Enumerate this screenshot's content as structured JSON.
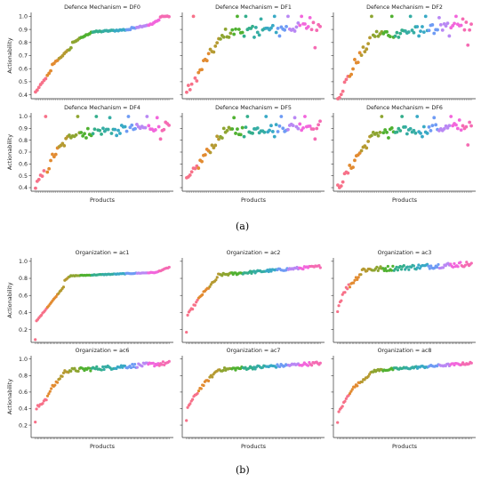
{
  "figure": {
    "label_a": "(a)",
    "label_b": "(b)"
  },
  "chart_data": [
    {
      "type": "scatter",
      "title": "Defence Mechanism = DF0",
      "xlabel": "",
      "ylabel": "Actionability",
      "ylim": [
        0.37,
        1.03
      ],
      "yticks": [
        0.4,
        0.5,
        0.6,
        0.7,
        0.8,
        0.9,
        1.0
      ],
      "ytick_labels": [
        "0.4",
        "0.5",
        "0.6",
        "0.7",
        "0.8",
        "0.9",
        "1.0"
      ],
      "n": 80,
      "ranges": [
        [
          0,
          10,
          0.42,
          0.58
        ],
        [
          10,
          22,
          0.63,
          0.76
        ],
        [
          22,
          33,
          0.8,
          0.87
        ],
        [
          33,
          57,
          0.88,
          0.9
        ],
        [
          57,
          70,
          0.91,
          0.94
        ],
        [
          70,
          74,
          0.95,
          0.97
        ],
        [
          74,
          80,
          1.0,
          1.0
        ]
      ],
      "jitter": 0.005
    },
    {
      "type": "scatter",
      "title": "Defence Mechanism = DF1",
      "xlabel": "",
      "ylabel": "",
      "ylim": [
        0.37,
        1.03
      ],
      "yticks": [
        0.4,
        0.5,
        0.6,
        0.7,
        0.8,
        0.9,
        1.0
      ],
      "ytick_labels": [],
      "n": 80,
      "ranges": [
        [
          0,
          10,
          0.42,
          0.6
        ],
        [
          10,
          22,
          0.64,
          0.84
        ],
        [
          22,
          80,
          0.87,
          0.93
        ]
      ],
      "jitter": 0.035,
      "outliers": [
        [
          4,
          1.0
        ],
        [
          30,
          1.0
        ],
        [
          35,
          1.0
        ],
        [
          44,
          0.98
        ],
        [
          52,
          1.0
        ],
        [
          60,
          1.0
        ],
        [
          68,
          1.0
        ],
        [
          73,
          0.99
        ],
        [
          25,
          0.84
        ],
        [
          40,
          0.84
        ],
        [
          55,
          0.85
        ],
        [
          76,
          0.76
        ]
      ]
    },
    {
      "type": "scatter",
      "title": "Defence Mechanism = DF2",
      "xlabel": "",
      "ylabel": "",
      "ylim": [
        0.37,
        1.03
      ],
      "yticks": [
        0.4,
        0.5,
        0.6,
        0.7,
        0.8,
        0.9,
        1.0
      ],
      "ytick_labels": [],
      "n": 80,
      "ranges": [
        [
          0,
          10,
          0.38,
          0.6
        ],
        [
          10,
          22,
          0.64,
          0.84
        ],
        [
          22,
          80,
          0.86,
          0.93
        ]
      ],
      "jitter": 0.035,
      "outliers": [
        [
          20,
          1.0
        ],
        [
          32,
          1.0
        ],
        [
          43,
          1.0
        ],
        [
          52,
          1.0
        ],
        [
          60,
          0.99
        ],
        [
          70,
          1.0
        ],
        [
          74,
          0.98
        ],
        [
          36,
          0.84
        ],
        [
          48,
          0.85
        ],
        [
          66,
          0.85
        ],
        [
          77,
          0.78
        ]
      ]
    },
    {
      "type": "scatter",
      "title": "Defence Mechanism = DF4",
      "xlabel": "Products",
      "ylabel": "Actionability",
      "ylim": [
        0.37,
        1.03
      ],
      "yticks": [
        0.4,
        0.5,
        0.6,
        0.7,
        0.8,
        0.9,
        1.0
      ],
      "ytick_labels": [
        "0.4",
        "0.5",
        "0.6",
        "0.7",
        "0.8",
        "0.9",
        "1.0"
      ],
      "n": 80,
      "ranges": [
        [
          0,
          10,
          0.41,
          0.6
        ],
        [
          10,
          22,
          0.66,
          0.84
        ],
        [
          22,
          80,
          0.86,
          0.92
        ]
      ],
      "jitter": 0.035,
      "outliers": [
        [
          6,
          1.0
        ],
        [
          25,
          1.0
        ],
        [
          36,
          1.0
        ],
        [
          44,
          0.99
        ],
        [
          55,
          1.0
        ],
        [
          66,
          1.0
        ],
        [
          72,
          0.99
        ],
        [
          30,
          0.82
        ],
        [
          48,
          0.84
        ],
        [
          74,
          0.81
        ]
      ]
    },
    {
      "type": "scatter",
      "title": "Defence Mechanism = DF5",
      "xlabel": "Products",
      "ylabel": "",
      "ylim": [
        0.37,
        1.03
      ],
      "yticks": [
        0.4,
        0.5,
        0.6,
        0.7,
        0.8,
        0.9,
        1.0
      ],
      "ytick_labels": [],
      "n": 80,
      "ranges": [
        [
          0,
          10,
          0.45,
          0.63
        ],
        [
          10,
          22,
          0.66,
          0.85
        ],
        [
          22,
          80,
          0.87,
          0.93
        ]
      ],
      "jitter": 0.035,
      "outliers": [
        [
          28,
          0.99
        ],
        [
          36,
          1.0
        ],
        [
          47,
          1.0
        ],
        [
          56,
          1.0
        ],
        [
          64,
          0.99
        ],
        [
          70,
          1.0
        ],
        [
          34,
          0.83
        ],
        [
          52,
          0.83
        ],
        [
          76,
          0.81
        ]
      ]
    },
    {
      "type": "scatter",
      "title": "Defence Mechanism = DF6",
      "xlabel": "Products",
      "ylabel": "",
      "ylim": [
        0.37,
        1.03
      ],
      "yticks": [
        0.4,
        0.5,
        0.6,
        0.7,
        0.8,
        0.9,
        1.0
      ],
      "ytick_labels": [],
      "n": 80,
      "ranges": [
        [
          0,
          10,
          0.4,
          0.6
        ],
        [
          10,
          22,
          0.64,
          0.84
        ],
        [
          22,
          80,
          0.86,
          0.92
        ]
      ],
      "jitter": 0.035,
      "outliers": [
        [
          26,
          1.0
        ],
        [
          38,
          1.0
        ],
        [
          47,
          1.0
        ],
        [
          57,
          0.99
        ],
        [
          67,
          1.0
        ],
        [
          72,
          0.97
        ],
        [
          30,
          0.82
        ],
        [
          50,
          0.83
        ],
        [
          77,
          0.76
        ]
      ]
    },
    {
      "type": "scatter",
      "title": "Organization = ac1",
      "xlabel": "",
      "ylabel": "Actionability",
      "ylim": [
        0.05,
        1.04
      ],
      "yticks": [
        0.2,
        0.4,
        0.6,
        0.8,
        1.0
      ],
      "ytick_labels": [
        "0.2",
        "0.4",
        "0.6",
        "0.8",
        "1.0"
      ],
      "n": 110,
      "ranges": [
        [
          0,
          1,
          0.08,
          0.08
        ],
        [
          1,
          24,
          0.3,
          0.7
        ],
        [
          24,
          30,
          0.78,
          0.83
        ],
        [
          30,
          100,
          0.83,
          0.87
        ],
        [
          100,
          110,
          0.88,
          0.93
        ]
      ],
      "jitter": 0.004
    },
    {
      "type": "scatter",
      "title": "Organization = ac2",
      "xlabel": "",
      "ylabel": "",
      "ylim": [
        0.05,
        1.04
      ],
      "yticks": [
        0.2,
        0.4,
        0.6,
        0.8,
        1.0
      ],
      "ytick_labels": [],
      "n": 110,
      "ranges": [
        [
          0,
          1,
          0.17,
          0.17
        ],
        [
          1,
          12,
          0.37,
          0.58
        ],
        [
          12,
          26,
          0.6,
          0.8
        ],
        [
          26,
          110,
          0.84,
          0.94
        ]
      ],
      "jitter": 0.015
    },
    {
      "type": "scatter",
      "title": "Organization = ac3",
      "xlabel": "",
      "ylabel": "",
      "ylim": [
        0.05,
        1.04
      ],
      "yticks": [
        0.2,
        0.4,
        0.6,
        0.8,
        1.0
      ],
      "ytick_labels": [],
      "n": 110,
      "ranges": [
        [
          0,
          6,
          0.44,
          0.65
        ],
        [
          6,
          20,
          0.66,
          0.86
        ],
        [
          20,
          110,
          0.9,
          0.97
        ]
      ],
      "jitter": 0.03
    },
    {
      "type": "scatter",
      "title": "Organization = ac6",
      "xlabel": "Products",
      "ylabel": "Actionability",
      "ylim": [
        0.05,
        1.04
      ],
      "yticks": [
        0.2,
        0.4,
        0.6,
        0.8,
        1.0
      ],
      "ytick_labels": [
        "0.2",
        "0.4",
        "0.6",
        "0.8",
        "1.0"
      ],
      "n": 110,
      "ranges": [
        [
          0,
          1,
          0.22,
          0.22
        ],
        [
          1,
          12,
          0.4,
          0.56
        ],
        [
          12,
          26,
          0.62,
          0.86
        ],
        [
          26,
          110,
          0.86,
          0.95
        ]
      ],
      "jitter": 0.025
    },
    {
      "type": "scatter",
      "title": "Organization = ac7",
      "xlabel": "Products",
      "ylabel": "",
      "ylim": [
        0.05,
        1.04
      ],
      "yticks": [
        0.2,
        0.4,
        0.6,
        0.8,
        1.0
      ],
      "ytick_labels": [],
      "n": 110,
      "ranges": [
        [
          0,
          1,
          0.24,
          0.24
        ],
        [
          1,
          12,
          0.42,
          0.64
        ],
        [
          12,
          26,
          0.66,
          0.86
        ],
        [
          26,
          110,
          0.87,
          0.95
        ]
      ],
      "jitter": 0.02
    },
    {
      "type": "scatter",
      "title": "Organization = ac8",
      "xlabel": "Products",
      "ylabel": "",
      "ylim": [
        0.05,
        1.04
      ],
      "yticks": [
        0.2,
        0.4,
        0.6,
        0.8,
        1.0
      ],
      "ytick_labels": [],
      "n": 110,
      "ranges": [
        [
          0,
          1,
          0.22,
          0.22
        ],
        [
          1,
          12,
          0.36,
          0.62
        ],
        [
          12,
          30,
          0.64,
          0.85
        ],
        [
          30,
          110,
          0.86,
          0.95
        ]
      ],
      "jitter": 0.015
    }
  ]
}
